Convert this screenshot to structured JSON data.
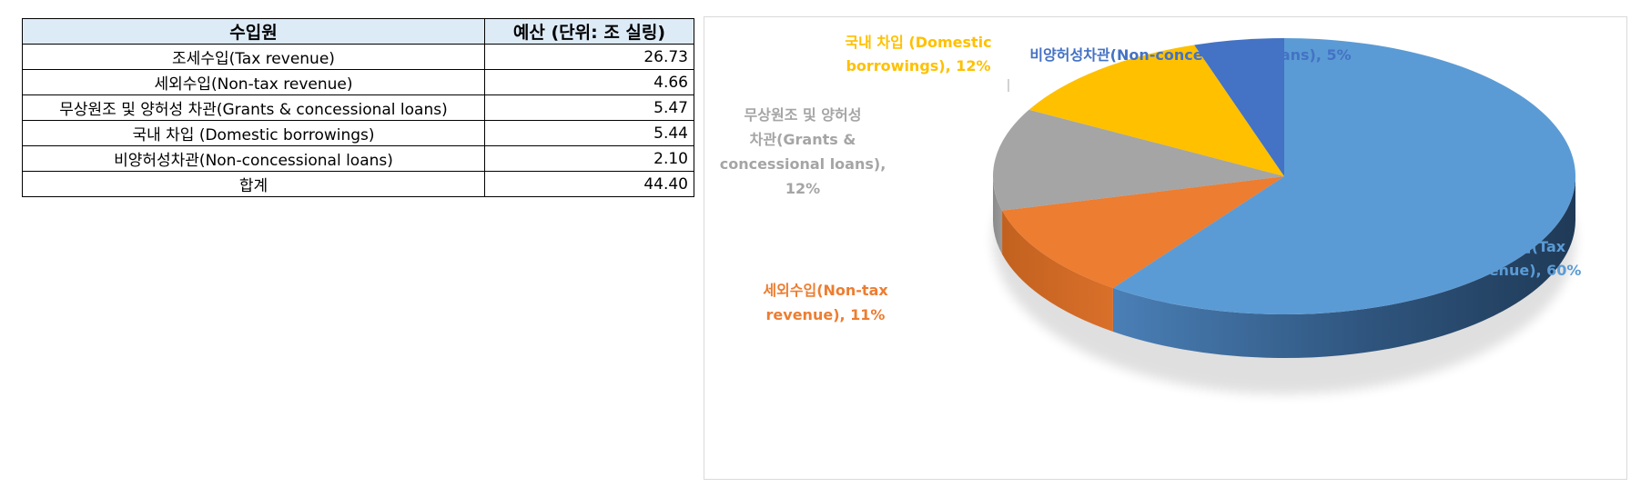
{
  "table": {
    "headers": {
      "source": "수입원",
      "budget": "예산 (단위: 조 실링)"
    },
    "rows": [
      {
        "source": "조세수입(Tax revenue)",
        "budget": "26.73"
      },
      {
        "source": "세외수입(Non-tax revenue)",
        "budget": "4.66"
      },
      {
        "source": "무상원조 및 양허성 차관(Grants & concessional loans)",
        "budget": "5.47"
      },
      {
        "source": "국내 차입 (Domestic borrowings)",
        "budget": "5.44"
      },
      {
        "source": "비양허성차관(Non-concessional loans)",
        "budget": "2.10"
      }
    ],
    "total": {
      "source": "합계",
      "budget": "44.40"
    }
  },
  "chart_data": {
    "type": "pie",
    "style": "3d",
    "categories": [
      "조세수입(Tax revenue)",
      "세외수입(Non-tax revenue)",
      "무상원조 및 양허성 차관(Grants & concessional loans)",
      "국내 차입 (Domestic borrowings)",
      "비양허성차관(Non-concessional loans)"
    ],
    "values": [
      60,
      11,
      12,
      12,
      5
    ],
    "unit": "%",
    "colors": [
      "#5b9bd5",
      "#ed7d31",
      "#a5a5a5",
      "#ffc000",
      "#4472c4"
    ],
    "labels": [
      {
        "lines": [
          "조세수입(Tax",
          "revenue), 60%"
        ],
        "color": "#5b9bd5"
      },
      {
        "lines": [
          "세외수입(Non-tax",
          "revenue), 11%"
        ],
        "color": "#ed7d31"
      },
      {
        "lines": [
          "무상원조 및 양허성",
          "차관(Grants &",
          "concessional loans),",
          "12%"
        ],
        "color": "#a5a5a5"
      },
      {
        "lines": [
          "국내 차입 (Domestic",
          "borrowings), 12%"
        ],
        "color": "#ffc000"
      },
      {
        "lines": [
          "비양허성차관(Non-concessional loans), 5%"
        ],
        "color": "#4472c4"
      }
    ],
    "legend": "none"
  }
}
